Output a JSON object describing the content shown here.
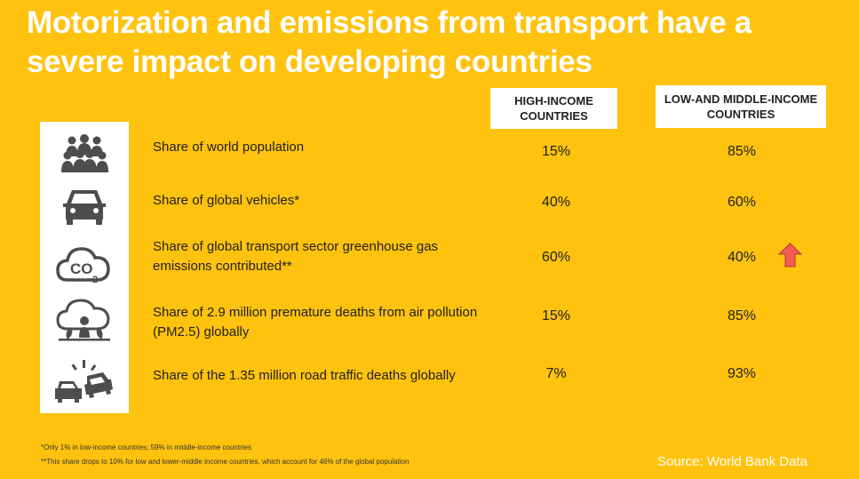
{
  "title": "Motorization and emissions from transport have a severe impact on developing countries",
  "columns": {
    "high": "HIGH-INCOME COUNTRIES",
    "low": "LOW-AND MIDDLE-INCOME COUNTRIES"
  },
  "rows": [
    {
      "icon": "people-icon",
      "label": "Share of world population",
      "high": "15%",
      "low": "85%"
    },
    {
      "icon": "car-icon",
      "label": "Share of global vehicles*",
      "high": "40%",
      "low": "60%"
    },
    {
      "icon": "co2-cloud-icon",
      "label": "Share of global transport sector greenhouse gas emissions contributed**",
      "high": "60%",
      "low": "40%"
    },
    {
      "icon": "air-pollution-icon",
      "label": "Share of 2.9 million premature deaths from air pollution (PM2.5) globally",
      "high": "15%",
      "low": "85%"
    },
    {
      "icon": "car-crash-icon",
      "label": "Share of the 1.35 million road traffic deaths globally",
      "high": "7%",
      "low": "93%"
    }
  ],
  "icon_texts": {
    "co2": "CO",
    "co2_sub": "2"
  },
  "arrow": {
    "icon": "up-arrow-icon",
    "color": "#F25C54"
  },
  "footnotes": [
    "*Only 1% in low-income countries; 59% in middle-income countries",
    "**This share drops to 10% for low and lower-middle income countries, which account for 46% of the global population"
  ],
  "source": "Source: World Bank Data",
  "colors": {
    "background": "#FFC20E",
    "panel": "#FFFFFF",
    "icon": "#4D4D4D"
  }
}
